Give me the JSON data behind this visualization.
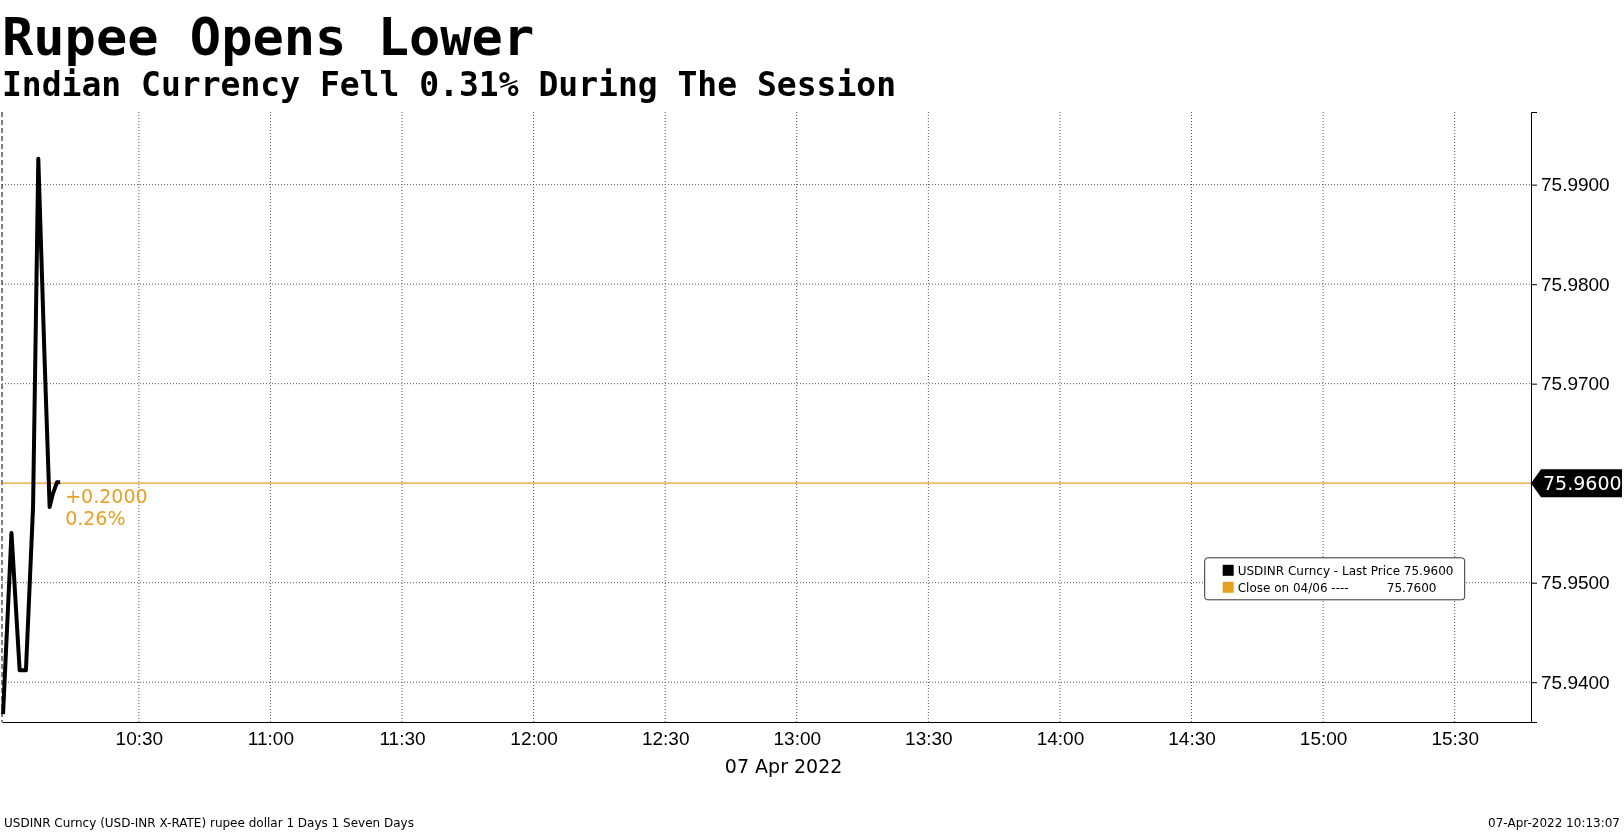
{
  "chart_data": {
    "type": "line",
    "title": "Rupee Opens Lower",
    "subtitle": "Indian Currency Fell 0.31% During The Session",
    "xlabel": "07 Apr 2022",
    "x": [
      9.984,
      10.016,
      10.047,
      10.071,
      10.098,
      10.118,
      10.142,
      10.161,
      10.173,
      10.189,
      10.201
    ],
    "series": [
      {
        "name": "USDINR Curncy - Last Price 75.9600",
        "color": "#000000",
        "values": [
          75.9368,
          75.955,
          75.9412,
          75.9412,
          75.9576,
          75.9926,
          75.9723,
          75.9576,
          75.9589,
          75.9601,
          75.9601
        ]
      },
      {
        "name": "Close on 04/06 ----          75.7600",
        "color": "#e8a020",
        "values": [
          null,
          null,
          null,
          null,
          null,
          null,
          null,
          null,
          null,
          null,
          null
        ]
      }
    ],
    "xlim": [
      9.98,
      15.79
    ],
    "ylim": [
      75.936,
      75.9973
    ],
    "xticks": [
      {
        "value": 10.5,
        "label": "10:30"
      },
      {
        "value": 11,
        "label": "11:00"
      },
      {
        "value": 11.5,
        "label": "11:30"
      },
      {
        "value": 12,
        "label": "12:00"
      },
      {
        "value": 12.5,
        "label": "12:30"
      },
      {
        "value": 13,
        "label": "13:00"
      },
      {
        "value": 13.5,
        "label": "13:30"
      },
      {
        "value": 14,
        "label": "14:00"
      },
      {
        "value": 14.5,
        "label": "14:30"
      },
      {
        "value": 15,
        "label": "15:00"
      },
      {
        "value": 15.5,
        "label": "15:30"
      }
    ],
    "yticks": [
      {
        "value": 75.94,
        "label": "75.9400"
      },
      {
        "value": 75.95,
        "label": "75.9500"
      },
      {
        "value": 75.97,
        "label": "75.9700"
      },
      {
        "value": 75.98,
        "label": "75.9800"
      },
      {
        "value": 75.99,
        "label": "75.9900"
      }
    ],
    "ref_lines": [
      {
        "axis": "y",
        "value": 75.96,
        "label": "75.9600",
        "color": "#e8a020"
      }
    ],
    "annotations": [
      {
        "text": "+0.2000",
        "x": 10.201,
        "y": 75.96
      },
      {
        "text": "0.26%",
        "x": 10.201,
        "y": 75.96
      },
      "USDINR Curncy (USD-INR X-RATE) rupee dollar 1 Days 1 Seven Days",
      "07-Apr-2022 10:13:07"
    ],
    "grid": true,
    "legend": "bottom right",
    "line_style": "solid",
    "marker": "none"
  }
}
